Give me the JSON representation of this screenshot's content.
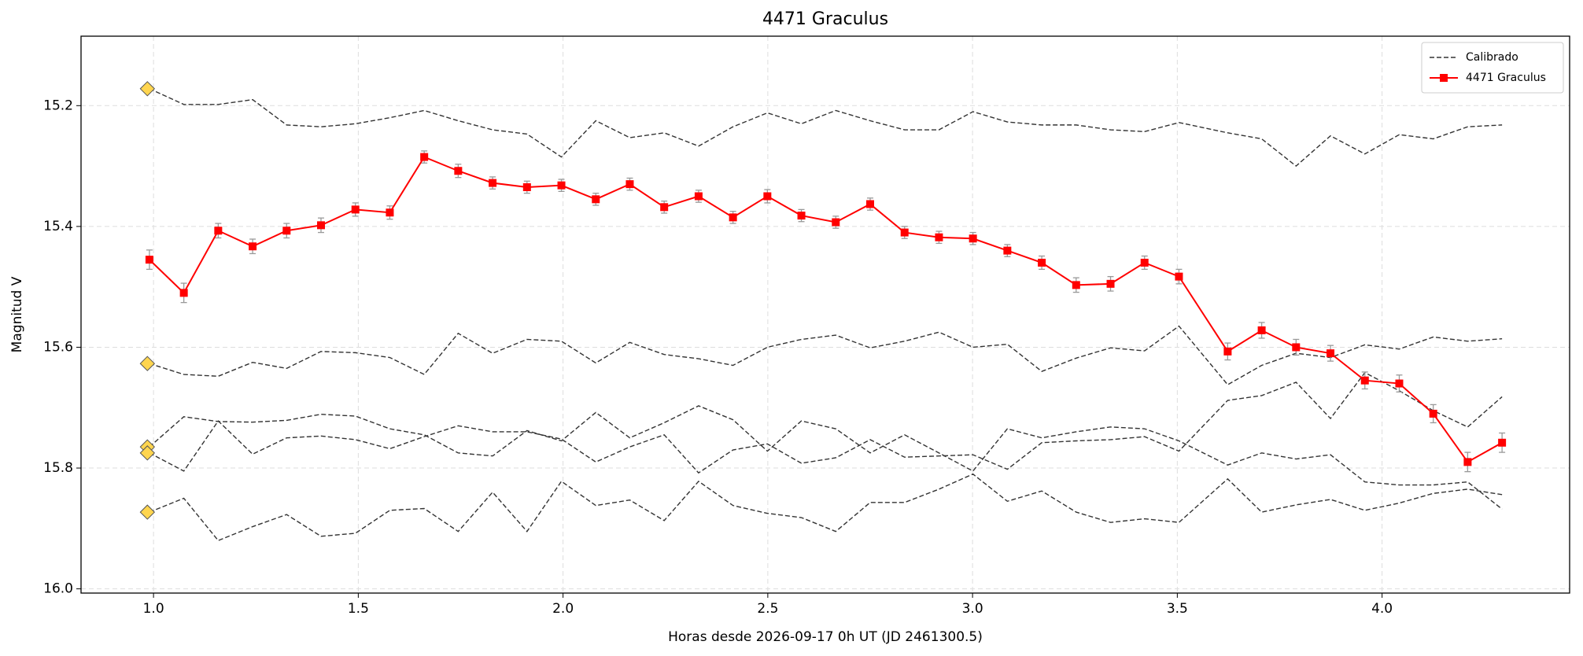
{
  "chart_data": {
    "type": "line",
    "title": "4471 Graculus",
    "xlabel": "Horas desde 2026-09-17 0h UT (JD 2461300.5)",
    "ylabel": "Magnitud V",
    "x": [
      0.99,
      1.074,
      1.158,
      1.242,
      1.325,
      1.409,
      1.493,
      1.577,
      1.661,
      1.744,
      1.828,
      1.912,
      1.996,
      2.08,
      2.163,
      2.247,
      2.331,
      2.415,
      2.499,
      2.582,
      2.666,
      2.75,
      2.834,
      2.918,
      3.001,
      3.085,
      3.169,
      3.253,
      3.337,
      3.42,
      3.504,
      3.623,
      3.706,
      3.79,
      3.874,
      3.958,
      4.042,
      4.125,
      4.209,
      4.293
    ],
    "series": [
      {
        "name": "Calibrado",
        "color": "#333333",
        "dashed": true,
        "values": [
          15.172,
          15.198,
          15.198,
          15.19,
          15.232,
          15.235,
          15.23,
          15.22,
          15.208,
          15.225,
          15.24,
          15.247,
          15.285,
          15.225,
          15.253,
          15.245,
          15.267,
          15.235,
          15.212,
          15.23,
          15.208,
          15.225,
          15.24,
          15.24,
          15.21,
          15.227,
          15.232,
          15.232,
          15.24,
          15.243,
          15.228,
          15.245,
          15.255,
          15.3,
          15.25,
          15.28,
          15.248,
          15.255,
          15.235,
          15.232
        ]
      },
      {
        "color": "#333333",
        "dashed": true,
        "values": [
          15.627,
          15.645,
          15.648,
          15.625,
          15.635,
          15.607,
          15.609,
          15.617,
          15.645,
          15.577,
          15.61,
          15.587,
          15.59,
          15.626,
          15.592,
          15.612,
          15.619,
          15.63,
          15.6,
          15.587,
          15.58,
          15.601,
          15.59,
          15.575,
          15.6,
          15.595,
          15.64,
          15.618,
          15.601,
          15.606,
          15.565,
          15.662,
          15.63,
          15.61,
          15.617,
          15.596,
          15.603,
          15.583,
          15.59,
          15.586
        ]
      },
      {
        "color": "#333333",
        "dashed": true,
        "values": [
          15.765,
          15.715,
          15.723,
          15.724,
          15.721,
          15.711,
          15.714,
          15.735,
          15.745,
          15.775,
          15.78,
          15.738,
          15.755,
          15.708,
          15.75,
          15.725,
          15.697,
          15.72,
          15.772,
          15.722,
          15.735,
          15.775,
          15.745,
          15.775,
          15.805,
          15.735,
          15.75,
          15.74,
          15.732,
          15.735,
          15.755,
          15.795,
          15.775,
          15.785,
          15.778,
          15.823,
          15.828,
          15.828,
          15.823,
          15.868
        ]
      },
      {
        "color": "#333333",
        "dashed": true,
        "values": [
          15.775,
          15.805,
          15.722,
          15.777,
          15.75,
          15.747,
          15.753,
          15.768,
          15.748,
          15.73,
          15.74,
          15.74,
          15.752,
          15.79,
          15.765,
          15.745,
          15.808,
          15.77,
          15.76,
          15.792,
          15.783,
          15.753,
          15.782,
          15.78,
          15.778,
          15.802,
          15.758,
          15.755,
          15.753,
          15.748,
          15.772,
          15.688,
          15.68,
          15.658,
          15.718,
          15.642,
          15.672,
          15.705,
          15.732,
          15.682
        ]
      },
      {
        "color": "#333333",
        "dashed": true,
        "values": [
          15.873,
          15.85,
          15.92,
          15.897,
          15.877,
          15.913,
          15.908,
          15.87,
          15.867,
          15.905,
          15.84,
          15.905,
          15.822,
          15.862,
          15.853,
          15.887,
          15.822,
          15.862,
          15.875,
          15.882,
          15.905,
          15.857,
          15.857,
          15.835,
          15.81,
          15.855,
          15.838,
          15.873,
          15.89,
          15.884,
          15.89,
          15.818,
          15.873,
          15.861,
          15.852,
          15.87,
          15.858,
          15.842,
          15.835,
          15.844
        ]
      },
      {
        "name": "4471 Graculus",
        "color": "#ff0000",
        "error_color": "#999999",
        "values": [
          15.455,
          15.51,
          15.407,
          15.433,
          15.407,
          15.398,
          15.372,
          15.377,
          15.285,
          15.308,
          15.328,
          15.335,
          15.332,
          15.355,
          15.33,
          15.368,
          15.35,
          15.385,
          15.35,
          15.382,
          15.393,
          15.363,
          15.41,
          15.418,
          15.42,
          15.44,
          15.46,
          15.497,
          15.495,
          15.46,
          15.483,
          15.607,
          15.572,
          15.6,
          15.61,
          15.655,
          15.66,
          15.71,
          15.79,
          15.758
        ],
        "errors": [
          0.016,
          0.016,
          0.012,
          0.012,
          0.012,
          0.012,
          0.011,
          0.011,
          0.01,
          0.011,
          0.01,
          0.01,
          0.01,
          0.01,
          0.01,
          0.01,
          0.01,
          0.01,
          0.011,
          0.01,
          0.01,
          0.01,
          0.01,
          0.01,
          0.01,
          0.01,
          0.011,
          0.012,
          0.012,
          0.011,
          0.012,
          0.014,
          0.013,
          0.013,
          0.013,
          0.014,
          0.014,
          0.015,
          0.016,
          0.016
        ]
      }
    ],
    "reference_points": {
      "color": "#ffd54f",
      "x": [
        0.985,
        0.985,
        0.985,
        0.985,
        0.985
      ],
      "values": [
        15.172,
        15.627,
        15.765,
        15.775,
        15.873
      ]
    },
    "xlim": [
      0.823,
      4.458
    ],
    "ylim": [
      15.085,
      16.007
    ],
    "y_inverted": true,
    "xticks": [
      {
        "value": 1.0,
        "label": "1.0"
      },
      1.5,
      {
        "value": 2.0,
        "label": "2.0"
      },
      2.5,
      {
        "value": 3.0,
        "label": "3.0"
      },
      3.5,
      {
        "value": 4.0,
        "label": "4.0"
      }
    ],
    "yticks": [
      15.2,
      15.4,
      15.6,
      15.8,
      {
        "value": 16.0,
        "label": "16.0"
      }
    ],
    "grid": true,
    "legend": "upper right"
  }
}
